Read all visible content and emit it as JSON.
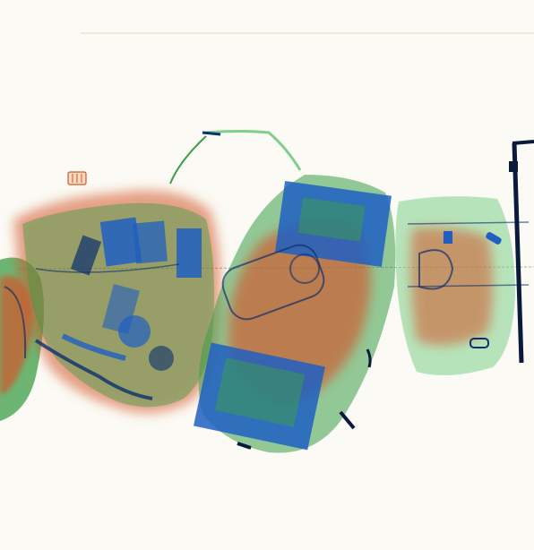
{
  "scene": {
    "kind": "x-ray baggage scan",
    "colors": {
      "background": "#fbfaf4",
      "organic": "#d2572a",
      "organic_dark": "#a84a25",
      "inorganic": "#3c9e48",
      "inorganic_light": "#7fd08a",
      "metal": "#1f5fc2",
      "metal_dark": "#0c2f6e",
      "dense": "#0a1a3a"
    },
    "objects": [
      "left-bag-partial",
      "clutter-bag-electronics",
      "rolling-suitcase",
      "small-bag-right",
      "metal-frame-bracket"
    ]
  }
}
